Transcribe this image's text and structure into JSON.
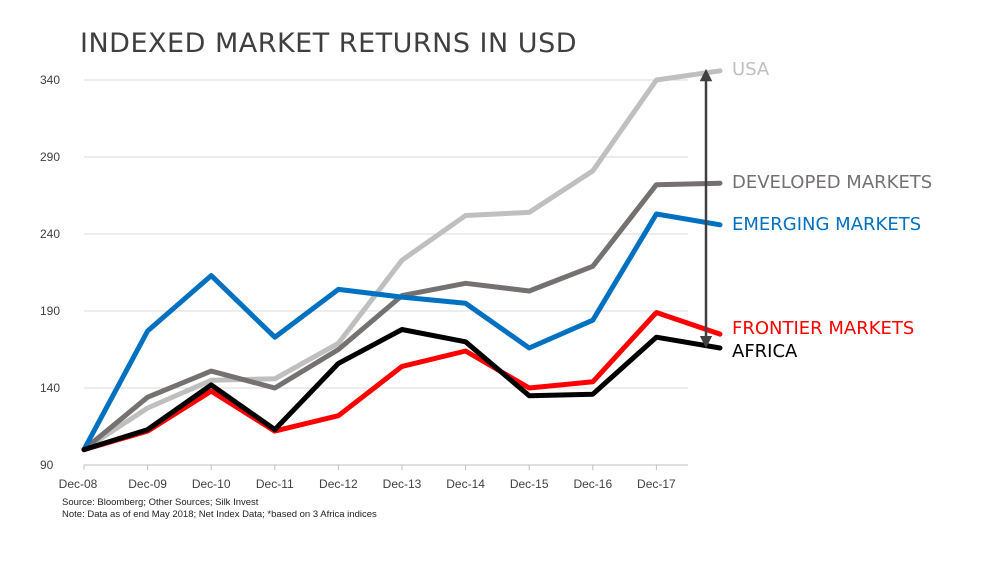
{
  "title": "INDEXED MARKET RETURNS IN USD",
  "source_line": "Source:  Bloomberg; Other Sources; Silk Invest",
  "note_line": "Note: Data as of end May 2018; Net Index Data; *based on 3 Africa indices",
  "chart_data": {
    "type": "line",
    "title": "INDEXED MARKET RETURNS IN USD",
    "xlabel": "",
    "ylabel": "",
    "x_tick_labels": [
      "Dec-08",
      "Dec-09",
      "Dec-10",
      "Dec-11",
      "Dec-12",
      "Dec-13",
      "Dec-14",
      "Dec-15",
      "Dec-16",
      "Dec-17"
    ],
    "x": [
      "Dec-08",
      "Dec-09",
      "Dec-10",
      "Dec-11",
      "Dec-12",
      "Dec-13",
      "Dec-14",
      "Dec-15",
      "Dec-16",
      "Dec-17",
      "May-18"
    ],
    "ylim": [
      90,
      340
    ],
    "y_ticks": [
      "90",
      "140",
      "190",
      "240",
      "290",
      "340"
    ],
    "grid": true,
    "series": [
      {
        "name": "USA",
        "color": "#bfbfbf",
        "values": [
          100,
          127,
          145,
          146,
          169,
          223,
          252,
          254,
          281,
          340,
          346
        ]
      },
      {
        "name": "DEVELOPED MARKETS",
        "color": "#767171",
        "values": [
          100,
          134,
          151,
          140,
          165,
          200,
          208,
          203,
          219,
          272,
          273
        ]
      },
      {
        "name": "EMERGING MARKETS",
        "color": "#0070c0",
        "values": [
          100,
          177,
          213,
          173,
          204,
          199,
          195,
          166,
          184,
          253,
          246
        ]
      },
      {
        "name": "FRONTIER MARKETS",
        "color": "#ff0000",
        "values": [
          100,
          112,
          138,
          112,
          122,
          154,
          164,
          140,
          144,
          189,
          175
        ]
      },
      {
        "name": "AFRICA",
        "color": "#000000",
        "values": [
          100,
          113,
          142,
          113,
          156,
          178,
          170,
          135,
          136,
          173,
          166
        ]
      }
    ],
    "legend_placement": "right"
  }
}
